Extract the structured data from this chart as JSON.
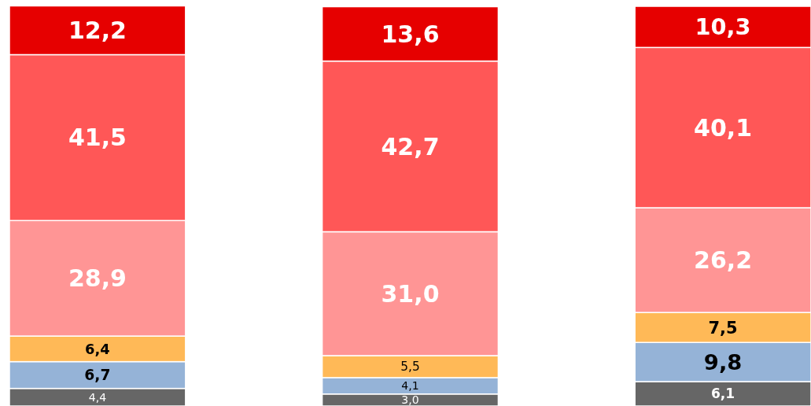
{
  "chart_data": {
    "type": "bar",
    "stacked": true,
    "categories": [
      null,
      null,
      null
    ],
    "ylim": [
      0,
      100
    ],
    "series": [
      {
        "color": "#666666",
        "values": [
          4.4,
          3.0,
          6.1
        ],
        "value_labels": [
          "4,4",
          "3,0",
          "6,1"
        ]
      },
      {
        "color": "#95b3d7",
        "values": [
          6.7,
          4.1,
          9.8
        ],
        "value_labels": [
          "6,7",
          "4,1",
          "9,8"
        ]
      },
      {
        "color": "#ffb957",
        "values": [
          6.4,
          5.5,
          7.5
        ],
        "value_labels": [
          "6,4",
          "5,5",
          "7,5"
        ]
      },
      {
        "color": "#ff9595",
        "values": [
          28.9,
          31.0,
          26.2
        ],
        "value_labels": [
          "28,9",
          "31,0",
          "26,2"
        ]
      },
      {
        "color": "#ff5757",
        "values": [
          41.5,
          42.7,
          40.1
        ],
        "value_labels": [
          "41,5",
          "42,7",
          "40,1"
        ]
      },
      {
        "color": "#e60000",
        "values": [
          12.2,
          13.6,
          10.3
        ],
        "value_labels": [
          "12,2",
          "13,6",
          "10,3"
        ]
      }
    ]
  }
}
